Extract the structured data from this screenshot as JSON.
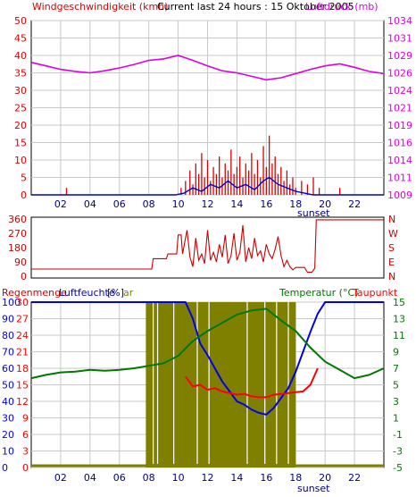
{
  "header": {
    "left": "Windgeschwindigkeit (kmh)",
    "center": "Current last 24 hours : 15 Oktober 2005",
    "right": "Luftdruck (mb)"
  },
  "panel2_right_labels": [
    "N",
    "W",
    "S",
    "E",
    "N"
  ],
  "panel3_header": {
    "left_a": "Regenmenge",
    "left_b": "Luftfeuchte",
    "left_c": "[%]",
    "left_d": "ar",
    "right_a": "Temperatur (°C)",
    "right_b": "Taupunkt"
  },
  "sunset_label": "sunset",
  "colors": {
    "wind": "#dd0000",
    "gust_line": "#0000cc",
    "pressure": "#dd00dd",
    "direction": "#cc0000",
    "humidity": "#0000ee",
    "temperature": "#007700",
    "dewpoint": "#ff0000",
    "rain": "#808000",
    "grid": "#c8c8c8",
    "frame": "#000000"
  },
  "chart_data": [
    {
      "type": "bar",
      "name": "wind",
      "x_ticks": [
        "02",
        "04",
        "06",
        "08",
        "10",
        "12",
        "14",
        "16",
        "18",
        "20",
        "22"
      ],
      "ylim_left": [
        0,
        50
      ],
      "yticks_left": [
        0,
        5,
        10,
        15,
        20,
        25,
        30,
        35,
        40,
        45,
        50
      ],
      "ylim_right": [
        1009,
        1034
      ],
      "yticks_right": [
        1009,
        1011,
        1014,
        1016,
        1019,
        1021,
        1024,
        1026,
        1029,
        1031,
        1034
      ],
      "grid": true,
      "wind_bars": [
        [
          2.4,
          2
        ],
        [
          10.2,
          2
        ],
        [
          10.5,
          4
        ],
        [
          10.8,
          7
        ],
        [
          11.0,
          3
        ],
        [
          11.2,
          9
        ],
        [
          11.4,
          6
        ],
        [
          11.6,
          12
        ],
        [
          11.8,
          5
        ],
        [
          12.0,
          10
        ],
        [
          12.2,
          4
        ],
        [
          12.4,
          8
        ],
        [
          12.6,
          6
        ],
        [
          12.8,
          11
        ],
        [
          13.0,
          5
        ],
        [
          13.2,
          9
        ],
        [
          13.4,
          7
        ],
        [
          13.6,
          13
        ],
        [
          13.8,
          6
        ],
        [
          14.0,
          8
        ],
        [
          14.2,
          11
        ],
        [
          14.4,
          5
        ],
        [
          14.6,
          9
        ],
        [
          14.8,
          7
        ],
        [
          15.0,
          12
        ],
        [
          15.2,
          6
        ],
        [
          15.4,
          10
        ],
        [
          15.6,
          5
        ],
        [
          15.8,
          14
        ],
        [
          16.0,
          8
        ],
        [
          16.2,
          17
        ],
        [
          16.4,
          9
        ],
        [
          16.6,
          11
        ],
        [
          16.8,
          6
        ],
        [
          17.0,
          8
        ],
        [
          17.2,
          4
        ],
        [
          17.4,
          7
        ],
        [
          17.6,
          3
        ],
        [
          17.8,
          5
        ],
        [
          18.0,
          2
        ],
        [
          18.4,
          4
        ],
        [
          18.8,
          3
        ],
        [
          19.2,
          5
        ],
        [
          19.6,
          2
        ],
        [
          21.0,
          2
        ]
      ],
      "wind_line": [
        [
          0,
          0
        ],
        [
          9.8,
          0
        ],
        [
          10.4,
          0.5
        ],
        [
          11.0,
          2
        ],
        [
          11.6,
          1
        ],
        [
          12.2,
          3
        ],
        [
          12.8,
          2
        ],
        [
          13.4,
          4
        ],
        [
          14.0,
          2
        ],
        [
          14.6,
          3
        ],
        [
          15.2,
          1.5
        ],
        [
          15.8,
          4
        ],
        [
          16.2,
          5
        ],
        [
          16.8,
          3
        ],
        [
          17.4,
          2
        ],
        [
          18.0,
          1
        ],
        [
          18.6,
          0.5
        ],
        [
          19.2,
          0
        ],
        [
          24,
          0
        ]
      ],
      "pressure": [
        [
          0,
          1028.0
        ],
        [
          1,
          1027.5
        ],
        [
          2,
          1027.0
        ],
        [
          3,
          1026.7
        ],
        [
          4,
          1026.5
        ],
        [
          5,
          1026.8
        ],
        [
          6,
          1027.2
        ],
        [
          7,
          1027.7
        ],
        [
          8,
          1028.3
        ],
        [
          9,
          1028.5
        ],
        [
          10,
          1029.0
        ],
        [
          11,
          1028.3
        ],
        [
          12,
          1027.5
        ],
        [
          13,
          1026.8
        ],
        [
          14,
          1026.5
        ],
        [
          15,
          1026.0
        ],
        [
          16,
          1025.5
        ],
        [
          17,
          1025.8
        ],
        [
          18,
          1026.4
        ],
        [
          19,
          1027.0
        ],
        [
          20,
          1027.5
        ],
        [
          21,
          1027.8
        ],
        [
          22,
          1027.3
        ],
        [
          23,
          1026.7
        ],
        [
          24,
          1026.4
        ]
      ]
    },
    {
      "type": "line",
      "name": "direction",
      "ylim_left": [
        0,
        360
      ],
      "yticks_left": [
        0,
        90,
        180,
        270,
        360
      ],
      "grid": false,
      "values": [
        [
          0,
          45
        ],
        [
          8.2,
          45
        ],
        [
          8.3,
          110
        ],
        [
          9.2,
          110
        ],
        [
          9.3,
          140
        ],
        [
          9.9,
          140
        ],
        [
          10.0,
          260
        ],
        [
          10.2,
          260
        ],
        [
          10.3,
          140
        ],
        [
          10.6,
          290
        ],
        [
          10.8,
          120
        ],
        [
          11.0,
          60
        ],
        [
          11.2,
          240
        ],
        [
          11.4,
          100
        ],
        [
          11.6,
          140
        ],
        [
          11.8,
          80
        ],
        [
          12.0,
          290
        ],
        [
          12.2,
          100
        ],
        [
          12.4,
          150
        ],
        [
          12.6,
          90
        ],
        [
          12.8,
          200
        ],
        [
          13.0,
          120
        ],
        [
          13.2,
          260
        ],
        [
          13.4,
          80
        ],
        [
          13.6,
          130
        ],
        [
          13.8,
          270
        ],
        [
          14.0,
          100
        ],
        [
          14.2,
          150
        ],
        [
          14.4,
          320
        ],
        [
          14.6,
          90
        ],
        [
          14.8,
          180
        ],
        [
          15.0,
          110
        ],
        [
          15.2,
          240
        ],
        [
          15.4,
          130
        ],
        [
          15.6,
          160
        ],
        [
          15.8,
          90
        ],
        [
          16.0,
          200
        ],
        [
          16.2,
          140
        ],
        [
          16.4,
          110
        ],
        [
          16.6,
          170
        ],
        [
          16.8,
          250
        ],
        [
          17.0,
          130
        ],
        [
          17.2,
          60
        ],
        [
          17.4,
          100
        ],
        [
          17.6,
          60
        ],
        [
          17.8,
          40
        ],
        [
          18.0,
          55
        ],
        [
          18.6,
          55
        ],
        [
          18.8,
          25
        ],
        [
          19.1,
          25
        ],
        [
          19.3,
          50
        ],
        [
          19.4,
          355
        ],
        [
          24,
          355
        ]
      ]
    },
    {
      "type": "line",
      "name": "humidity-temperature",
      "ylim_left": [
        0,
        100
      ],
      "yticks_left": [
        0,
        10,
        20,
        30,
        40,
        50,
        60,
        70,
        80,
        90,
        100
      ],
      "yticks_left_inner": [
        0,
        3,
        6,
        9,
        12,
        15,
        18,
        21,
        24,
        27,
        30
      ],
      "ylim_right": [
        -5,
        15
      ],
      "yticks_right": [
        -5,
        -3,
        -1,
        1,
        3,
        5,
        7,
        9,
        11,
        13,
        15
      ],
      "grid": true,
      "rain_band": [
        7.8,
        18.0
      ],
      "humidity": [
        [
          0,
          100
        ],
        [
          10.5,
          100
        ],
        [
          11.0,
          90
        ],
        [
          11.5,
          75
        ],
        [
          12.0,
          68
        ],
        [
          12.5,
          60
        ],
        [
          13.0,
          52
        ],
        [
          13.5,
          46
        ],
        [
          14.0,
          40
        ],
        [
          14.5,
          38
        ],
        [
          15.0,
          35
        ],
        [
          15.5,
          33
        ],
        [
          16.0,
          32
        ],
        [
          16.5,
          36
        ],
        [
          17.0,
          42
        ],
        [
          17.5,
          48
        ],
        [
          18.0,
          58
        ],
        [
          18.5,
          70
        ],
        [
          19.0,
          82
        ],
        [
          19.5,
          93
        ],
        [
          20.0,
          100
        ],
        [
          24,
          100
        ]
      ],
      "temperature": [
        [
          0,
          5.8
        ],
        [
          1,
          6.2
        ],
        [
          2,
          6.5
        ],
        [
          3,
          6.6
        ],
        [
          4,
          6.8
        ],
        [
          5,
          6.7
        ],
        [
          6,
          6.8
        ],
        [
          7,
          7.0
        ],
        [
          8,
          7.3
        ],
        [
          9,
          7.6
        ],
        [
          10,
          8.5
        ],
        [
          11,
          10.3
        ],
        [
          12,
          11.5
        ],
        [
          13,
          12.5
        ],
        [
          14,
          13.5
        ],
        [
          15,
          14.0
        ],
        [
          16,
          14.2
        ],
        [
          17,
          12.8
        ],
        [
          18,
          11.5
        ],
        [
          19,
          9.5
        ],
        [
          20,
          7.8
        ],
        [
          21,
          6.8
        ],
        [
          22,
          5.8
        ],
        [
          23,
          6.2
        ],
        [
          24,
          7.0
        ]
      ],
      "dewpoint": [
        [
          10.5,
          6.0
        ],
        [
          11.0,
          4.8
        ],
        [
          11.5,
          5.0
        ],
        [
          12.0,
          4.4
        ],
        [
          12.5,
          4.6
        ],
        [
          13.0,
          4.2
        ],
        [
          13.5,
          4.0
        ],
        [
          14.0,
          3.8
        ],
        [
          14.5,
          3.9
        ],
        [
          15.0,
          3.6
        ],
        [
          15.5,
          3.5
        ],
        [
          16.0,
          3.5
        ],
        [
          16.5,
          3.8
        ],
        [
          17.0,
          3.9
        ],
        [
          17.5,
          4.0
        ],
        [
          18.0,
          4.1
        ],
        [
          18.5,
          4.2
        ],
        [
          19.0,
          5.0
        ],
        [
          19.5,
          7.0
        ]
      ]
    }
  ]
}
